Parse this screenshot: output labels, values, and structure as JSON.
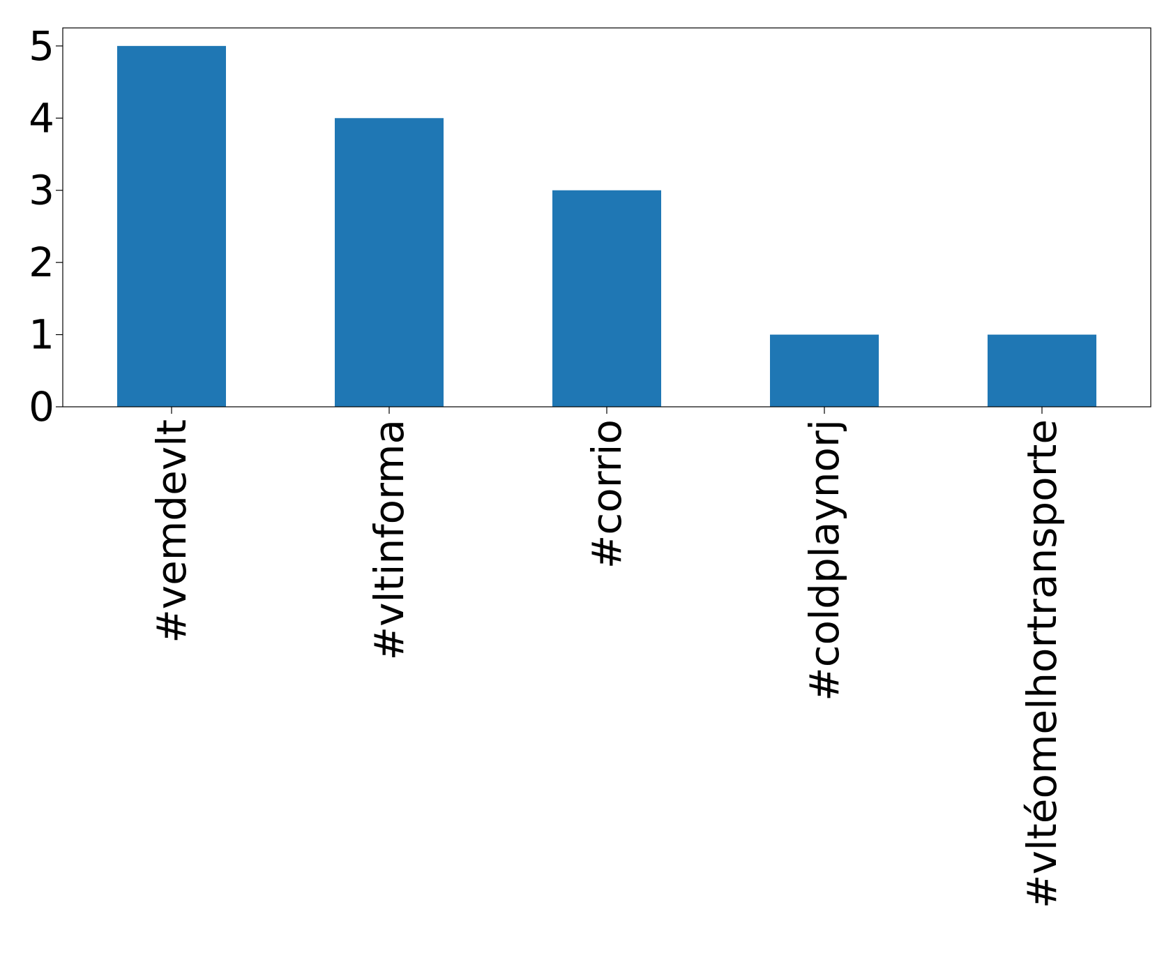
{
  "chart_data": {
    "type": "bar",
    "title": "",
    "xlabel": "",
    "ylabel": "",
    "categories": [
      "#vemdevlt",
      "#vltinforma",
      "#corrio",
      "#coldplaynorj",
      "#vltéomelhortransporte"
    ],
    "values": [
      5,
      4,
      3,
      1,
      1
    ],
    "ylim": [
      0,
      5.25
    ],
    "yticks": [
      0,
      1,
      2,
      3,
      4,
      5
    ],
    "grid": false,
    "legend": "none",
    "bar_color": "#1f77b4"
  }
}
